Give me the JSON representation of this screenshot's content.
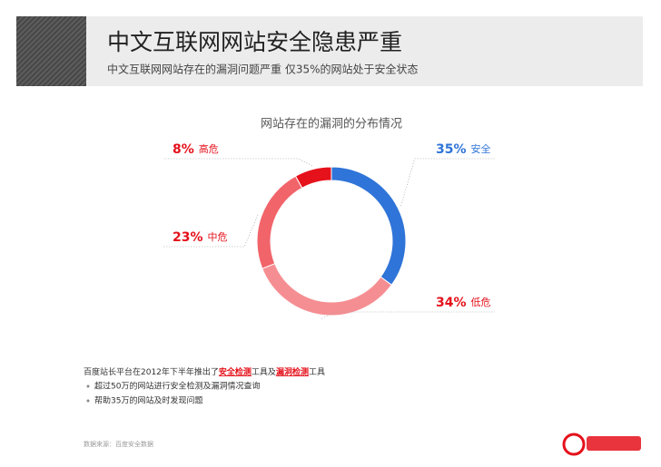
{
  "header": {
    "title": "中文互联网网站安全隐患严重",
    "subtitle": "中文互联网网站存在的漏洞问题严重  仅35%的网站处于安全状态"
  },
  "chart_data": {
    "type": "donut",
    "title": "网站存在的漏洞的分布情况",
    "categories": [
      "安全",
      "低危",
      "中危",
      "高危"
    ],
    "values": [
      35,
      34,
      23,
      8
    ],
    "value_labels": [
      "35%",
      "34%",
      "23%",
      "8%"
    ],
    "colors": [
      "#2f74d8",
      "#f58e92",
      "#f1646a",
      "#e5111b"
    ],
    "label_colors": [
      "#2f74d8",
      "#e5111b",
      "#e5111b",
      "#e5111b"
    ]
  },
  "notes": {
    "lead": [
      "百度站长平台在2012年下半年推出了",
      "安全检测",
      "工具及",
      "漏洞检测",
      "工具"
    ],
    "bullets": [
      "超过50万的网站进行安全检测及漏洞情况查询",
      "帮助35万的网站及时发现问题"
    ],
    "source": "数据来源：百度安全数据"
  }
}
